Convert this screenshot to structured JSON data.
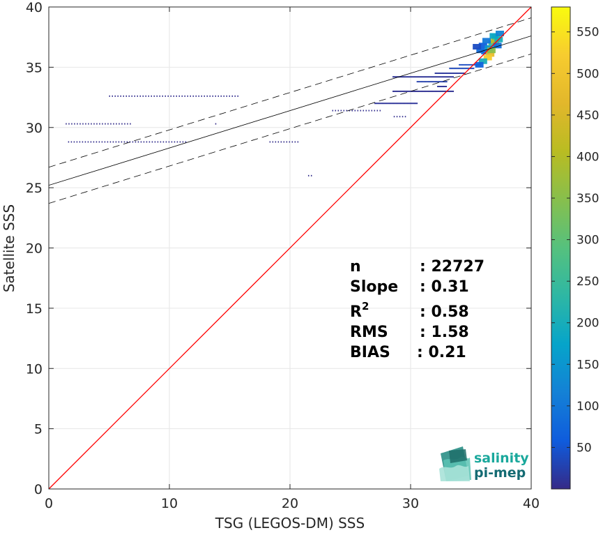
{
  "chart_data": {
    "type": "heatmap",
    "xlabel": "TSG (LEGOS-DM) SSS",
    "ylabel": "Satellite SSS",
    "xlim": [
      0,
      40
    ],
    "ylim": [
      0,
      40
    ],
    "xticks": [
      0,
      10,
      20,
      30,
      40
    ],
    "yticks": [
      0,
      5,
      10,
      15,
      20,
      25,
      30,
      35,
      40
    ],
    "grid": true,
    "colorbar": {
      "ticks": [
        50,
        100,
        150,
        200,
        250,
        300,
        350,
        400,
        450,
        500,
        550
      ],
      "range": [
        0,
        580
      ],
      "colormap": "parula"
    },
    "identity_line": {
      "color": "#ff0000",
      "x": [
        0,
        40
      ],
      "y": [
        0,
        40
      ]
    },
    "regression_line": {
      "slope": 0.31,
      "intercept": 25.2,
      "color": "#000000"
    },
    "confidence_band": {
      "offset": 1.5,
      "style": "dashed",
      "color": "#000000"
    },
    "density_segments": [
      {
        "y": 32.6,
        "x_start": 5.0,
        "x_end": 15.8,
        "count": 4
      },
      {
        "y": 30.3,
        "x_start": 1.4,
        "x_end": 6.8,
        "count": 3
      },
      {
        "y": 30.3,
        "x_start": 13.8,
        "x_end": 14.0,
        "count": 2
      },
      {
        "y": 28.8,
        "x_start": 1.6,
        "x_end": 11.5,
        "count": 4
      },
      {
        "y": 28.8,
        "x_start": 18.3,
        "x_end": 20.8,
        "count": 3
      },
      {
        "y": 26.0,
        "x_start": 21.5,
        "x_end": 21.9,
        "count": 3
      },
      {
        "y": 31.4,
        "x_start": 23.5,
        "x_end": 27.5,
        "count": 4
      },
      {
        "y": 32.0,
        "x_start": 27.0,
        "x_end": 30.5,
        "count": 12
      },
      {
        "y": 33.0,
        "x_start": 28.5,
        "x_end": 33.5,
        "count": 8
      },
      {
        "y": 34.2,
        "x_start": 28.5,
        "x_end": 33.5,
        "count": 10
      },
      {
        "y": 33.8,
        "x_start": 30.5,
        "x_end": 33.0,
        "count": 25
      },
      {
        "y": 34.5,
        "x_start": 32.0,
        "x_end": 34.5,
        "count": 15
      },
      {
        "y": 33.4,
        "x_start": 32.2,
        "x_end": 33.0,
        "count": 10
      },
      {
        "y": 30.9,
        "x_start": 28.6,
        "x_end": 29.6,
        "count": 5
      },
      {
        "y": 35.2,
        "x_start": 34.0,
        "x_end": 35.8,
        "count": 40
      },
      {
        "y": 34.9,
        "x_start": 33.2,
        "x_end": 35.2,
        "count": 35
      }
    ],
    "density_cluster": [
      {
        "x": 36.0,
        "y": 36.8,
        "count": 60
      },
      {
        "x": 36.2,
        "y": 36.3,
        "count": 90
      },
      {
        "x": 36.5,
        "y": 36.6,
        "count": 150
      },
      {
        "x": 36.8,
        "y": 37.0,
        "count": 250
      },
      {
        "x": 37.0,
        "y": 37.2,
        "count": 420
      },
      {
        "x": 37.1,
        "y": 37.5,
        "count": 300
      },
      {
        "x": 37.3,
        "y": 37.3,
        "count": 200
      },
      {
        "x": 36.6,
        "y": 36.1,
        "count": 480
      },
      {
        "x": 36.4,
        "y": 35.8,
        "count": 520
      },
      {
        "x": 35.8,
        "y": 36.4,
        "count": 80
      },
      {
        "x": 35.5,
        "y": 36.7,
        "count": 40
      },
      {
        "x": 36.3,
        "y": 37.2,
        "count": 100
      },
      {
        "x": 36.9,
        "y": 37.6,
        "count": 180
      },
      {
        "x": 37.4,
        "y": 37.8,
        "count": 120
      },
      {
        "x": 36.0,
        "y": 35.5,
        "count": 200
      },
      {
        "x": 35.7,
        "y": 35.2,
        "count": 70
      },
      {
        "x": 37.2,
        "y": 36.8,
        "count": 90
      },
      {
        "x": 36.7,
        "y": 36.4,
        "count": 350
      }
    ]
  },
  "stats": {
    "n_label": "n",
    "n_value": ": 22727",
    "slope_label": "Slope",
    "slope_value": ": 0.31",
    "r2_label": "R",
    "r2_sup": "2",
    "r2_value": ": 0.58",
    "rms_label": "RMS",
    "rms_value": ": 1.58",
    "bias_label": "BIAS",
    "bias_value": ": 0.21"
  },
  "logo": {
    "line1": "salinity",
    "line2": "pi-mep",
    "color1": "#1aa89c",
    "color2": "#146b73"
  }
}
